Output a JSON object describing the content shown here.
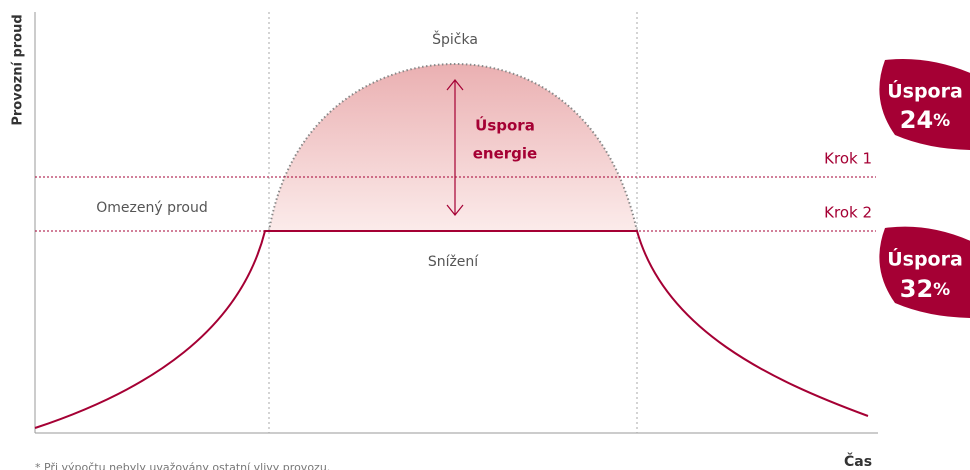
{
  "axis": {
    "y_label": "Provozní proud",
    "x_label": "Čas"
  },
  "labels": {
    "peak": "Špička",
    "saving": [
      "Úspora",
      "energie"
    ],
    "step1": "Krok 1",
    "step2": "Krok 2",
    "limited": "Omezený proud",
    "reduction": "Snížení"
  },
  "badges": [
    {
      "title": "Úspora",
      "value": "24",
      "unit": "%"
    },
    {
      "title": "Úspora",
      "value": "32",
      "unit": "%"
    }
  ],
  "footnote": "* Při výpočtu nebyly uvažovány ostatní vlivy provozu."
}
